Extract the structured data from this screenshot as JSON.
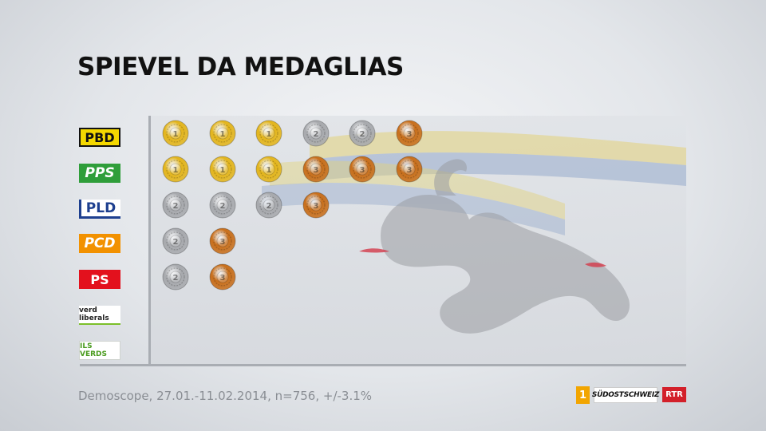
{
  "title": "SPIEVEL DA MEDAGLIAS",
  "source": "Demoscope, 27.01.-11.02.2014, n=756, +/-3.1%",
  "broadcaster_logos": {
    "rtr_channel": "1",
    "suedostschweiz": "SÜDOSTSCHWEIZ",
    "rtr": "RTR"
  },
  "colors": {
    "gold": "#e3b51c",
    "silver": "#a7a9ad",
    "bronze": "#c86f1c"
  },
  "chart_data": {
    "type": "table",
    "title": "SPIEVEL DA MEDAGLIAS",
    "rows": [
      {
        "party": "PBD",
        "medals": [
          "1",
          "1",
          "1",
          "2",
          "2",
          "3"
        ]
      },
      {
        "party": "PPS",
        "medals": [
          "1",
          "1",
          "1",
          "3",
          "3",
          "3"
        ]
      },
      {
        "party": "PLD",
        "medals": [
          "2",
          "2",
          "2",
          "3"
        ]
      },
      {
        "party": "PCD",
        "medals": [
          "2",
          "3"
        ]
      },
      {
        "party": "PS",
        "medals": [
          "2",
          "3"
        ]
      },
      {
        "party": "verd liberals",
        "medals": []
      },
      {
        "party": "ILS VERDS",
        "medals": []
      }
    ]
  }
}
